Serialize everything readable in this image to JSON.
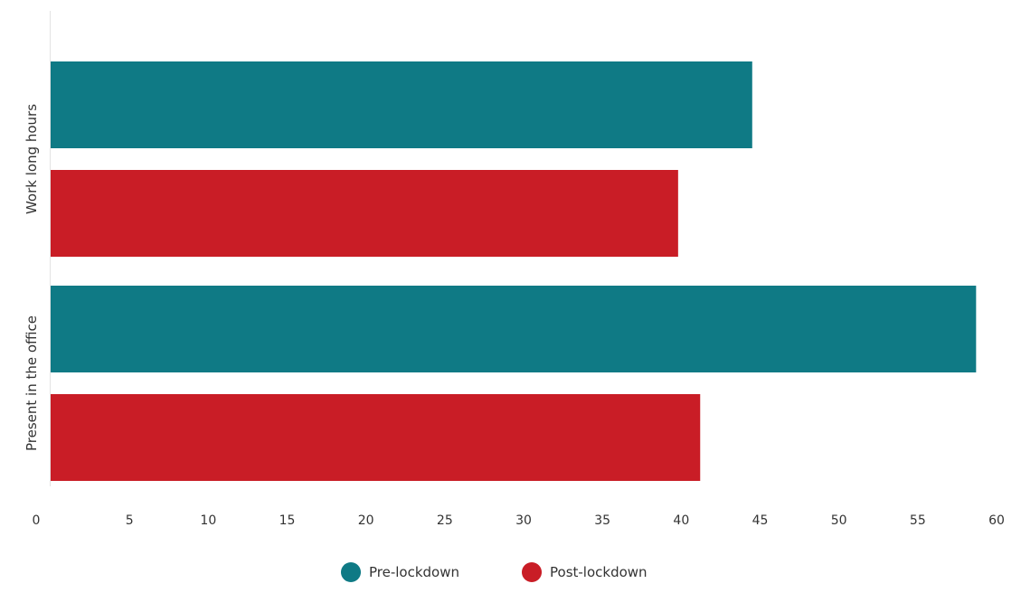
{
  "chart_data": {
    "type": "bar",
    "orientation": "horizontal",
    "categories": [
      "Work long hours",
      "Present in the office"
    ],
    "series": [
      {
        "name": "Pre-lockdown",
        "values": [
          44.5,
          58.7
        ],
        "color": "#0f7a85"
      },
      {
        "name": "Post-lockdown",
        "values": [
          39.8,
          41.2
        ],
        "color": "#c91d26"
      }
    ],
    "xlim": [
      0,
      60
    ],
    "xticks": [
      "0",
      "5",
      "10",
      "15",
      "20",
      "25",
      "30",
      "35",
      "40",
      "45",
      "50",
      "55",
      "60"
    ],
    "title": "",
    "xlabel": "",
    "ylabel": "",
    "grid": false,
    "legend_position": "bottom-center"
  }
}
